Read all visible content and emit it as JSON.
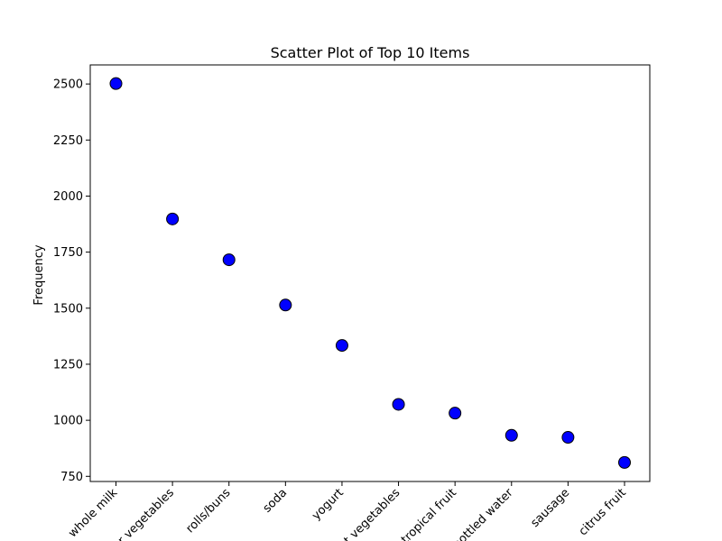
{
  "chart_data": {
    "type": "scatter",
    "title": "Scatter Plot of Top 10 Items",
    "xlabel": "",
    "ylabel": "Frequency",
    "categories": [
      "whole milk",
      "other vegetables",
      "rolls/buns",
      "soda",
      "yogurt",
      "root vegetables",
      "tropical fruit",
      "bottled water",
      "sausage",
      "citrus fruit"
    ],
    "values": [
      2502,
      1898,
      1716,
      1514,
      1334,
      1071,
      1032,
      933,
      924,
      812
    ],
    "ylim": [
      727,
      2585
    ],
    "yticks": [
      750,
      1000,
      1250,
      1500,
      1750,
      2000,
      2250,
      2500
    ],
    "x_tick_rotation_deg": 45,
    "grid": false,
    "point_color": "#0000ff",
    "point_edge_color": "#000000"
  }
}
